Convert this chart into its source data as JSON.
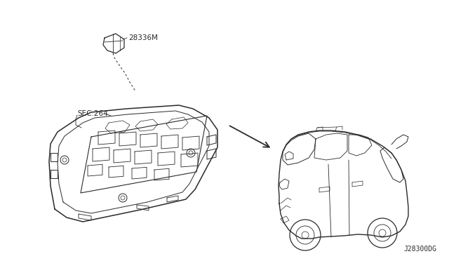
{
  "bg_color": "#ffffff",
  "line_color": "#2a2a2a",
  "label_28336M": "28336M",
  "label_SEC264": "SEC.264",
  "label_diagram_id": "J28300DG",
  "fig_width": 6.4,
  "fig_height": 3.72,
  "dpi": 100
}
